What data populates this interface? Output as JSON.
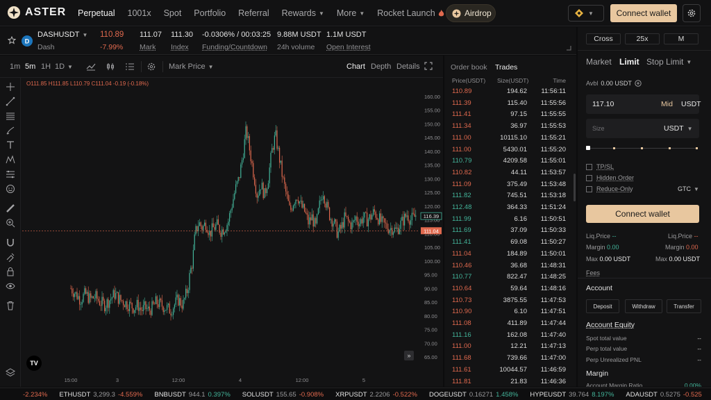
{
  "nav": {
    "logo": "ASTER",
    "items": [
      {
        "label": "Perpetual",
        "active": true
      },
      {
        "label": "1001x"
      },
      {
        "label": "Spot"
      },
      {
        "label": "Portfolio"
      },
      {
        "label": "Referral"
      },
      {
        "label": "Rewards",
        "dropdown": true
      },
      {
        "label": "More",
        "dropdown": true
      },
      {
        "label": "Rocket Launch",
        "icon": "fire-icon"
      }
    ],
    "airdrop": "Airdrop",
    "connect_wallet": "Connect wallet"
  },
  "ticker": {
    "symbol": "DASHUSDT",
    "name": "Dash",
    "last_price": "110.89",
    "change": "-7.99%",
    "mark_value": "111.07",
    "mark_label": "Mark",
    "index_value": "111.30",
    "index_label": "Index",
    "funding_value": "-0.0306% / 00:03:25",
    "funding_label": "Funding/Countdown",
    "volume_value": "9.88M USDT",
    "volume_label": "24h volume",
    "oi_value": "1.1M USDT",
    "oi_label": "Open Interest"
  },
  "chart_toolbar": {
    "timeframes": [
      "1m",
      "5m",
      "1H",
      "1D"
    ],
    "active_timeframe": "5m",
    "price_source": "Mark Price",
    "views": [
      "Chart",
      "Depth",
      "Details"
    ],
    "active_view": "Chart"
  },
  "chart_data": {
    "type": "candlestick",
    "ohlc_legend": {
      "o": "O111.85",
      "h": "H111.85",
      "l": "L110.79",
      "c": "C111.04",
      "chg": "-0.19 (-0.18%)"
    },
    "yticks": [
      "160.00",
      "155.00",
      "150.00",
      "145.00",
      "140.00",
      "135.00",
      "130.00",
      "125.00",
      "120.00",
      "115.00",
      "110.00",
      "105.00",
      "100.00",
      "95.00",
      "90.00",
      "85.00",
      "80.00",
      "75.00",
      "70.00",
      "65.00"
    ],
    "ylim": [
      62.5,
      162.5
    ],
    "xticks": [
      "15:00",
      "3",
      "12:00",
      "4",
      "12:00",
      "5"
    ],
    "last_price_tag": "111.04",
    "mark_price_tag": "116.39",
    "close_path": [
      [
        0,
        90
      ],
      [
        8,
        88
      ],
      [
        16,
        86
      ],
      [
        24,
        88
      ],
      [
        32,
        86
      ],
      [
        40,
        87
      ],
      [
        48,
        85
      ],
      [
        56,
        84
      ],
      [
        64,
        86
      ],
      [
        72,
        88
      ],
      [
        80,
        86
      ],
      [
        88,
        85
      ],
      [
        96,
        84
      ],
      [
        104,
        83
      ],
      [
        110,
        84
      ],
      [
        116,
        82
      ],
      [
        122,
        83
      ],
      [
        128,
        82
      ],
      [
        134,
        83
      ],
      [
        140,
        85
      ],
      [
        148,
        84
      ],
      [
        156,
        83
      ],
      [
        164,
        82
      ],
      [
        170,
        84
      ],
      [
        176,
        86
      ],
      [
        184,
        84
      ],
      [
        192,
        90
      ],
      [
        196,
        96
      ],
      [
        200,
        100
      ],
      [
        204,
        110
      ],
      [
        210,
        114
      ],
      [
        216,
        112
      ],
      [
        222,
        114
      ],
      [
        228,
        110
      ],
      [
        234,
        112
      ],
      [
        240,
        113
      ],
      [
        246,
        111
      ],
      [
        252,
        112
      ],
      [
        258,
        114
      ],
      [
        264,
        120
      ],
      [
        270,
        126
      ],
      [
        276,
        130
      ],
      [
        282,
        138
      ],
      [
        288,
        148
      ],
      [
        294,
        140
      ],
      [
        300,
        132
      ],
      [
        306,
        124
      ],
      [
        312,
        128
      ],
      [
        318,
        124
      ],
      [
        324,
        130
      ],
      [
        330,
        140
      ],
      [
        336,
        146
      ],
      [
        342,
        138
      ],
      [
        348,
        130
      ],
      [
        354,
        124
      ],
      [
        360,
        118
      ],
      [
        366,
        122
      ],
      [
        372,
        124
      ],
      [
        378,
        120
      ],
      [
        384,
        118
      ],
      [
        390,
        114
      ],
      [
        396,
        116
      ],
      [
        402,
        112
      ],
      [
        408,
        120
      ],
      [
        414,
        126
      ],
      [
        420,
        120
      ],
      [
        426,
        116
      ],
      [
        432,
        114
      ],
      [
        438,
        110
      ],
      [
        444,
        112
      ],
      [
        450,
        116
      ],
      [
        456,
        114
      ],
      [
        462,
        113
      ],
      [
        468,
        116
      ],
      [
        474,
        114
      ],
      [
        480,
        116
      ],
      [
        486,
        115
      ],
      [
        492,
        116
      ],
      [
        498,
        118
      ],
      [
        504,
        116
      ],
      [
        510,
        114
      ],
      [
        516,
        113
      ],
      [
        522,
        112
      ],
      [
        528,
        112
      ],
      [
        534,
        111
      ],
      [
        540,
        113
      ],
      [
        546,
        115
      ],
      [
        552,
        117
      ],
      [
        558,
        115
      ],
      [
        564,
        116
      ],
      [
        570,
        118
      ]
    ]
  },
  "orderbook": {
    "tabs": [
      "Order book",
      "Trades"
    ],
    "active_tab": "Trades",
    "headers": [
      "Price(USDT)",
      "Size(USDT)",
      "Time"
    ],
    "rows": [
      {
        "price": "110.89",
        "size": "194.62",
        "time": "11:56:11",
        "side": "sell"
      },
      {
        "price": "111.39",
        "size": "115.40",
        "time": "11:55:56",
        "side": "sell"
      },
      {
        "price": "111.41",
        "size": "97.15",
        "time": "11:55:55",
        "side": "sell"
      },
      {
        "price": "111.34",
        "size": "36.97",
        "time": "11:55:53",
        "side": "sell"
      },
      {
        "price": "111.00",
        "size": "10115.10",
        "time": "11:55:21",
        "side": "sell"
      },
      {
        "price": "111.00",
        "size": "5430.01",
        "time": "11:55:20",
        "side": "sell"
      },
      {
        "price": "110.79",
        "size": "4209.58",
        "time": "11:55:01",
        "side": "buy"
      },
      {
        "price": "110.82",
        "size": "44.11",
        "time": "11:53:57",
        "side": "sell"
      },
      {
        "price": "111.09",
        "size": "375.49",
        "time": "11:53:48",
        "side": "sell"
      },
      {
        "price": "111.82",
        "size": "745.51",
        "time": "11:53:18",
        "side": "buy"
      },
      {
        "price": "112.48",
        "size": "364.33",
        "time": "11:51:24",
        "side": "buy"
      },
      {
        "price": "111.99",
        "size": "6.16",
        "time": "11:50:51",
        "side": "buy"
      },
      {
        "price": "111.69",
        "size": "37.09",
        "time": "11:50:33",
        "side": "buy"
      },
      {
        "price": "111.41",
        "size": "69.08",
        "time": "11:50:27",
        "side": "buy"
      },
      {
        "price": "111.04",
        "size": "184.89",
        "time": "11:50:01",
        "side": "sell"
      },
      {
        "price": "110.46",
        "size": "36.68",
        "time": "11:48:31",
        "side": "sell"
      },
      {
        "price": "110.77",
        "size": "822.47",
        "time": "11:48:25",
        "side": "buy"
      },
      {
        "price": "110.64",
        "size": "59.64",
        "time": "11:48:16",
        "side": "sell"
      },
      {
        "price": "110.73",
        "size": "3875.55",
        "time": "11:47:53",
        "side": "sell"
      },
      {
        "price": "110.90",
        "size": "6.10",
        "time": "11:47:51",
        "side": "sell"
      },
      {
        "price": "111.08",
        "size": "411.89",
        "time": "11:47:44",
        "side": "sell"
      },
      {
        "price": "111.16",
        "size": "162.08",
        "time": "11:47:40",
        "side": "buy"
      },
      {
        "price": "111.00",
        "size": "12.21",
        "time": "11:47:13",
        "side": "sell"
      },
      {
        "price": "111.68",
        "size": "739.66",
        "time": "11:47:00",
        "side": "sell"
      },
      {
        "price": "111.61",
        "size": "10044.57",
        "time": "11:46:59",
        "side": "sell"
      },
      {
        "price": "111.81",
        "size": "21.83",
        "time": "11:46:36",
        "side": "sell"
      }
    ]
  },
  "order_form": {
    "margin_mode": "Cross",
    "leverage": "25x",
    "position_mode": "M",
    "order_types": [
      "Market",
      "Limit",
      "Stop Limit"
    ],
    "active_order_type": "Limit",
    "avbl_label": "Avbl",
    "avbl_value": "0.00 USDT",
    "price_value": "117.10",
    "price_mid": "Mid",
    "price_unit": "USDT",
    "size_placeholder": "Size",
    "size_unit": "USDT",
    "slider_percent": 0,
    "tpsl": "TP/SL",
    "hidden_order": "Hidden Order",
    "reduce_only": "Reduce-Only",
    "tif": "GTC",
    "connect_wallet": "Connect wallet",
    "liq_label": "Liq.Price",
    "liq_buy": "--",
    "liq_sell": "--",
    "margin_label": "Margin",
    "margin_buy": "0.00",
    "margin_sell": "0.00",
    "max_label": "Max",
    "max_buy": "0.00 USDT",
    "max_sell": "0.00 USDT",
    "fees": "Fees"
  },
  "account": {
    "title": "Account",
    "deposit": "Deposit",
    "withdraw": "Withdraw",
    "transfer": "Transfer",
    "equity_title": "Account Equity",
    "spot_total": "Spot total value",
    "spot_total_value": "--",
    "perp_total": "Perp total value",
    "perp_total_value": "--",
    "perp_pnl": "Perp Unrealized PNL",
    "perp_pnl_value": "--",
    "margin_title": "Margin",
    "margin_ratio": "Account Margin Ratio",
    "margin_ratio_value": "0.00%"
  },
  "bottom_ticker": [
    {
      "sym": "",
      "price": "",
      "chg": "-2.234%",
      "dir": "down"
    },
    {
      "sym": "ETHUSDT",
      "price": "3,299.3",
      "chg": "-4.559%",
      "dir": "down"
    },
    {
      "sym": "BNBUSDT",
      "price": "944.1",
      "chg": "0.397%",
      "dir": "up"
    },
    {
      "sym": "SOLUSDT",
      "price": "155.65",
      "chg": "-0.908%",
      "dir": "down"
    },
    {
      "sym": "XRPUSDT",
      "price": "2.2206",
      "chg": "-0.522%",
      "dir": "down"
    },
    {
      "sym": "DOGEUSDT",
      "price": "0.16271",
      "chg": "1.458%",
      "dir": "up"
    },
    {
      "sym": "HYPEUSDT",
      "price": "39.764",
      "chg": "8.197%",
      "dir": "up"
    },
    {
      "sym": "ADAUSDT",
      "price": "0.5275",
      "chg": "-0.525",
      "dir": "down"
    }
  ],
  "colors": {
    "accent": "#e8c79f",
    "up": "#43b49a",
    "down": "#e0694e"
  }
}
